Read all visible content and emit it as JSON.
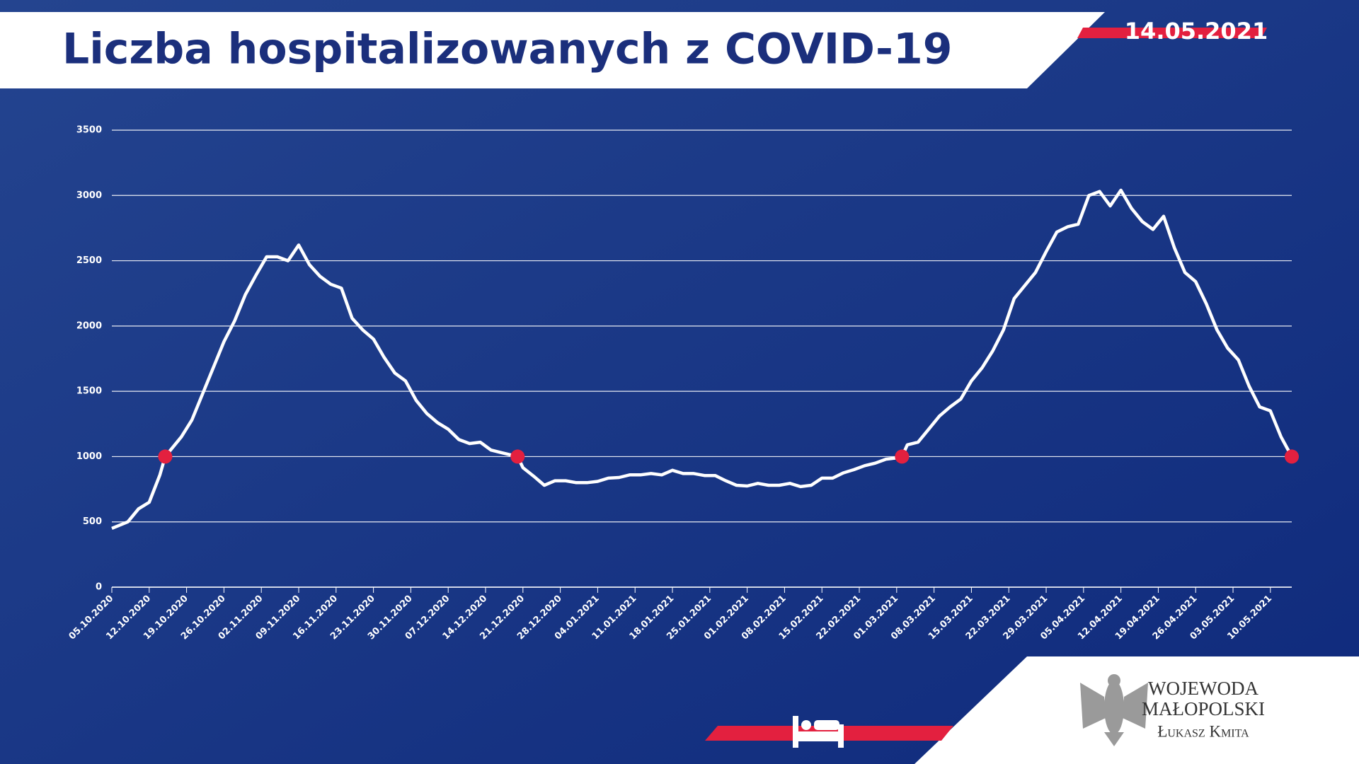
{
  "chart_data": {
    "type": "line",
    "title": "Liczba hospitalizowanych z COVID-19",
    "date_label": "14.05.2021",
    "signature": [
      "WOJEWODA",
      "MAŁOPOLSKI",
      "Łukasz Kmita"
    ],
    "color": "#ffffff",
    "grid": true,
    "ylim": [
      0,
      3500
    ],
    "yticks": [
      0,
      500,
      1000,
      1500,
      2000,
      2500,
      3000,
      3500
    ],
    "xlim": [
      "05.10.2020",
      "14.05.2021"
    ],
    "xticks": [
      "05.10.2020",
      "12.10.2020",
      "19.10.2020",
      "26.10.2020",
      "02.11.2020",
      "09.11.2020",
      "16.11.2020",
      "23.11.2020",
      "30.11.2020",
      "07.12.2020",
      "14.12.2020",
      "21.12.2020",
      "28.12.2020",
      "04.01.2021",
      "11.01.2021",
      "18.01.2021",
      "25.01.2021",
      "01.02.2021",
      "08.02.2021",
      "15.02.2021",
      "22.02.2021",
      "01.03.2021",
      "08.03.2021",
      "15.03.2021",
      "22.03.2021",
      "29.03.2021",
      "05.04.2021",
      "12.04.2021",
      "19.04.2021",
      "26.04.2021",
      "03.05.2021",
      "10.05.2021"
    ],
    "x": [
      "05.10.2020",
      "08.10.2020",
      "10.10.2020",
      "12.10.2020",
      "14.10.2020",
      "15.10.2020",
      "18.10.2020",
      "20.10.2020",
      "22.10.2020",
      "24.10.2020",
      "26.10.2020",
      "28.10.2020",
      "30.10.2020",
      "01.11.2020",
      "03.11.2020",
      "05.11.2020",
      "07.11.2020",
      "09.11.2020",
      "11.11.2020",
      "13.11.2020",
      "15.11.2020",
      "17.11.2020",
      "19.11.2020",
      "21.11.2020",
      "23.11.2020",
      "25.11.2020",
      "27.11.2020",
      "29.11.2020",
      "01.12.2020",
      "03.12.2020",
      "05.12.2020",
      "07.12.2020",
      "09.12.2020",
      "11.12.2020",
      "13.12.2020",
      "15.12.2020",
      "17.12.2020",
      "19.12.2020",
      "20.12.2020",
      "21.12.2020",
      "23.12.2020",
      "25.12.2020",
      "27.12.2020",
      "29.12.2020",
      "31.12.2020",
      "02.01.2021",
      "04.01.2021",
      "06.01.2021",
      "08.01.2021",
      "10.01.2021",
      "12.01.2021",
      "14.01.2021",
      "16.01.2021",
      "18.01.2021",
      "20.01.2021",
      "22.01.2021",
      "24.01.2021",
      "26.01.2021",
      "28.01.2021",
      "30.01.2021",
      "01.02.2021",
      "03.02.2021",
      "05.02.2021",
      "07.02.2021",
      "09.02.2021",
      "11.02.2021",
      "13.02.2021",
      "15.02.2021",
      "17.02.2021",
      "19.02.2021",
      "21.02.2021",
      "23.02.2021",
      "25.02.2021",
      "27.02.2021",
      "01.03.2021",
      "02.03.2021",
      "03.03.2021",
      "05.03.2021",
      "07.03.2021",
      "09.03.2021",
      "11.03.2021",
      "13.03.2021",
      "15.03.2021",
      "17.03.2021",
      "19.03.2021",
      "21.03.2021",
      "23.03.2021",
      "25.03.2021",
      "27.03.2021",
      "29.03.2021",
      "31.03.2021",
      "02.04.2021",
      "04.04.2021",
      "06.04.2021",
      "08.04.2021",
      "10.04.2021",
      "12.04.2021",
      "14.04.2021",
      "16.04.2021",
      "18.04.2021",
      "20.04.2021",
      "22.04.2021",
      "24.04.2021",
      "26.04.2021",
      "28.04.2021",
      "30.04.2021",
      "02.05.2021",
      "04.05.2021",
      "06.05.2021",
      "08.05.2021",
      "10.05.2021",
      "12.05.2021",
      "14.05.2021"
    ],
    "values": [
      450,
      500,
      600,
      650,
      860,
      1000,
      1150,
      1280,
      1480,
      1680,
      1880,
      2040,
      2240,
      2390,
      2530,
      2530,
      2500,
      2620,
      2470,
      2380,
      2320,
      2290,
      2060,
      1970,
      1900,
      1760,
      1640,
      1580,
      1430,
      1330,
      1260,
      1210,
      1130,
      1100,
      1110,
      1050,
      1030,
      1010,
      1000,
      915,
      850,
      780,
      815,
      815,
      800,
      800,
      810,
      835,
      840,
      860,
      860,
      870,
      860,
      895,
      870,
      870,
      855,
      855,
      815,
      780,
      775,
      795,
      780,
      780,
      795,
      770,
      780,
      835,
      835,
      875,
      900,
      930,
      950,
      980,
      990,
      1000,
      1090,
      1110,
      1210,
      1310,
      1380,
      1440,
      1580,
      1680,
      1810,
      1970,
      2210,
      2310,
      2410,
      2570,
      2720,
      2760,
      2780,
      3000,
      3030,
      2920,
      3040,
      2900,
      2800,
      2740,
      2840,
      2600,
      2410,
      2340,
      2170,
      1970,
      1830,
      1740,
      1540,
      1380,
      1350,
      1150,
      1000
    ],
    "highlights": {
      "color": "#e3203f",
      "x": [
        "15.10.2020",
        "20.12.2020",
        "02.03.2021",
        "14.05.2021"
      ],
      "values": [
        1000,
        1000,
        1000,
        1000
      ]
    }
  }
}
